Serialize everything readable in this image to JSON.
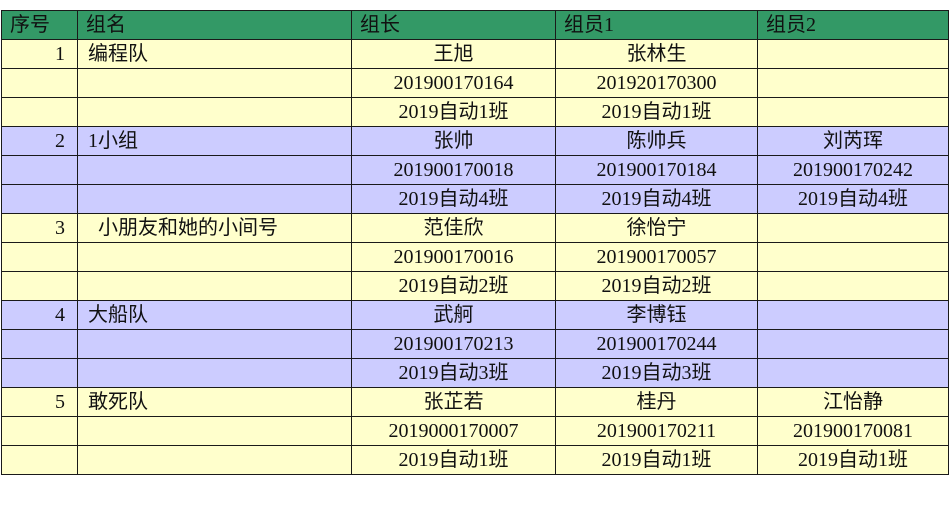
{
  "colors": {
    "header": "#339966",
    "odd_group": "#ffffcc",
    "even_group": "#ccccff"
  },
  "headers": [
    "序号",
    "组名",
    "组长",
    "组员1",
    "组员2"
  ],
  "groups": [
    {
      "no": "1",
      "name": "编程队",
      "members": [
        {
          "name": "王旭",
          "id": "201900170164",
          "class": "2019自动1班"
        },
        {
          "name": "张林生",
          "id": "201920170300",
          "class": "2019自动1班"
        },
        {
          "name": "",
          "id": "",
          "class": ""
        }
      ]
    },
    {
      "no": "2",
      "name": "1小组",
      "members": [
        {
          "name": "张帅",
          "id": "201900170018",
          "class": "2019自动4班"
        },
        {
          "name": "陈帅兵",
          "id": "201900170184",
          "class": "2019自动4班"
        },
        {
          "name": "刘芮珲",
          "id": "201900170242",
          "class": "2019自动4班"
        }
      ]
    },
    {
      "no": "3",
      "name": "  小朋友和她的小间号",
      "members": [
        {
          "name": "范佳欣",
          "id": "201900170016",
          "class": "2019自动2班"
        },
        {
          "name": "徐怡宁",
          "id": "201900170057",
          "class": "2019自动2班"
        },
        {
          "name": "",
          "id": "",
          "class": ""
        }
      ]
    },
    {
      "no": "4",
      "name": "大船队",
      "members": [
        {
          "name": "武舸",
          "id": "201900170213",
          "class": "2019自动3班"
        },
        {
          "name": "李博钰",
          "id": "201900170244",
          "class": "2019自动3班"
        },
        {
          "name": "",
          "id": "",
          "class": ""
        }
      ]
    },
    {
      "no": "5",
      "name": "敢死队",
      "members": [
        {
          "name": "张芷若",
          "id": "2019000170007",
          "class": "2019自动1班"
        },
        {
          "name": "桂丹",
          "id": "201900170211",
          "class": "2019自动1班"
        },
        {
          "name": "江怡静",
          "id": "201900170081",
          "class": "2019自动1班"
        }
      ]
    }
  ]
}
